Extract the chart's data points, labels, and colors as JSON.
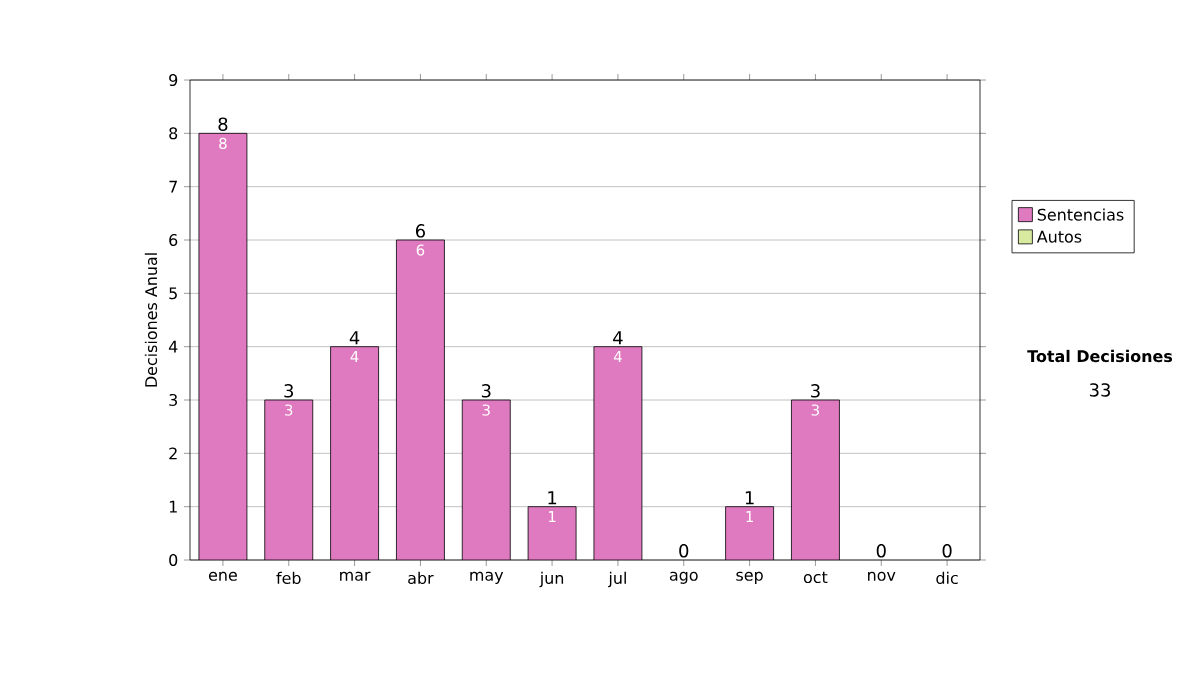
{
  "chart_data": {
    "type": "bar",
    "stacked": true,
    "ylabel": "Decisiones Anual",
    "categories": [
      "ene",
      "feb",
      "mar",
      "abr",
      "may",
      "jun",
      "jul",
      "ago",
      "sep",
      "oct",
      "nov",
      "dic"
    ],
    "series": [
      {
        "name": "Sentencias",
        "color": "#e07ac0",
        "values": [
          8,
          3,
          4,
          6,
          3,
          1,
          4,
          0,
          1,
          3,
          0,
          0
        ],
        "value_labels": [
          "8",
          "3",
          "4",
          "6",
          "3",
          "1",
          "4",
          null,
          "1",
          "3",
          null,
          null
        ]
      },
      {
        "name": "Autos",
        "color": "#d8eaa0",
        "values": [
          0,
          0,
          0,
          0,
          0,
          0,
          0,
          0,
          0,
          0,
          0,
          0
        ]
      }
    ],
    "totals": [
      "8",
      "3",
      "4",
      "6",
      "3",
      "1",
      "4",
      "0",
      "1",
      "3",
      "0",
      "0"
    ],
    "ylim": [
      0,
      9
    ],
    "yticks": [
      0,
      1,
      2,
      3,
      4,
      5,
      6,
      7,
      8,
      9
    ],
    "grid": "y",
    "legend": "right",
    "annotations": [
      "Total Decisiones",
      "33"
    ]
  }
}
